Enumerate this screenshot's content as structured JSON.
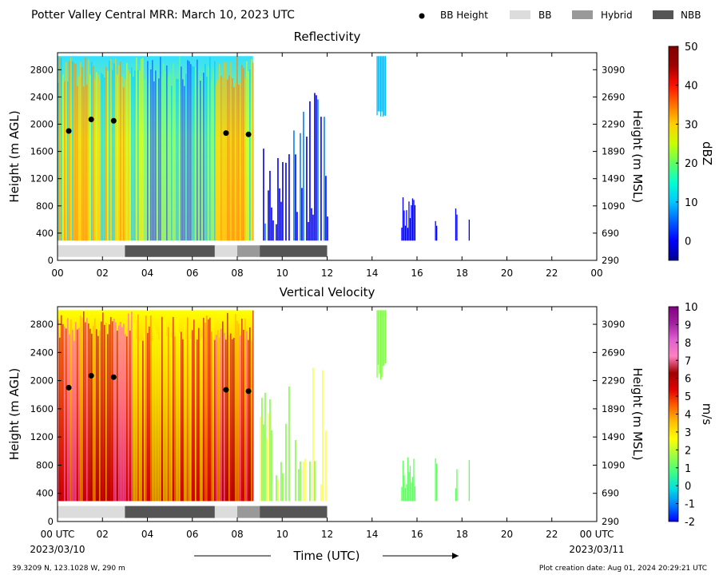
{
  "header": {
    "title": "Potter Valley Central MRR:  March 10, 2023 UTC"
  },
  "legend": {
    "placement": "top-right",
    "items": [
      {
        "label": "BB Height",
        "kind": "dot",
        "color": "#000000"
      },
      {
        "label": "BB",
        "kind": "swatch",
        "color": "#dcdcdc"
      },
      {
        "label": "Hybrid",
        "kind": "swatch",
        "color": "#999999"
      },
      {
        "label": "NBB",
        "kind": "swatch",
        "color": "#555555"
      }
    ]
  },
  "footer": {
    "location": "39.3209 N, 123.1028 W, 290 m",
    "creation": "Plot creation date: Aug 01, 2024 20:29:21 UTC",
    "xlabel": "Time (UTC)",
    "start_date": "2023/03/10",
    "end_date": "2023/03/11"
  },
  "chart_data": [
    {
      "type": "heatmap",
      "title": "Reflectivity",
      "ylabel": "Height (m AGL)",
      "y2label": "Height (m MSL)",
      "colorbar_label": "dBZ",
      "xlim": [
        0,
        24
      ],
      "ylim": [
        0,
        3050
      ],
      "x_ticks": [
        "00",
        "02",
        "04",
        "06",
        "08",
        "10",
        "12",
        "14",
        "16",
        "18",
        "20",
        "22",
        "00"
      ],
      "y_ticks": [
        0,
        400,
        800,
        1200,
        1600,
        2000,
        2400,
        2800
      ],
      "y2_ticks": [
        290,
        690,
        1090,
        1490,
        1890,
        2290,
        2690,
        3090
      ],
      "colorbar": {
        "min": -5,
        "max": 50,
        "ticks": [
          0,
          10,
          20,
          30,
          40,
          50
        ],
        "colors": [
          "#00008f",
          "#0000ff",
          "#0060ff",
          "#00c8ff",
          "#00ffd0",
          "#60ff60",
          "#c8ff00",
          "#ffd000",
          "#ff7000",
          "#ff1000",
          "#a00000",
          "#800000"
        ]
      },
      "bb_height_points": [
        {
          "x": 0.5,
          "y": 1900
        },
        {
          "x": 1.5,
          "y": 2070
        },
        {
          "x": 2.5,
          "y": 2050
        },
        {
          "x": 7.5,
          "y": 1870
        },
        {
          "x": 8.5,
          "y": 1850
        }
      ],
      "bb_type_bar": [
        {
          "start": 0,
          "end": 3,
          "type": "BB"
        },
        {
          "start": 3,
          "end": 7,
          "type": "NBB"
        },
        {
          "start": 7,
          "end": 8,
          "type": "BB"
        },
        {
          "start": 8,
          "end": 9,
          "type": "Hybrid"
        },
        {
          "start": 9,
          "end": 12,
          "type": "NBB"
        }
      ]
    },
    {
      "type": "heatmap",
      "title": "Vertical Velocity",
      "ylabel": "Height (m AGL)",
      "y2label": "Height (m MSL)",
      "colorbar_label": "m/s",
      "xlim": [
        0,
        24
      ],
      "ylim": [
        0,
        3050
      ],
      "x_ticks": [
        "00 UTC",
        "02",
        "04",
        "06",
        "08",
        "10",
        "12",
        "14",
        "16",
        "18",
        "20",
        "22",
        "00 UTC"
      ],
      "y_ticks": [
        0,
        400,
        800,
        1200,
        1600,
        2000,
        2400,
        2800
      ],
      "y2_ticks": [
        290,
        690,
        1090,
        1490,
        1890,
        2290,
        2690,
        3090
      ],
      "colorbar": {
        "min": -2,
        "max": 10,
        "ticks": [
          -2,
          -1,
          0,
          1,
          2,
          3,
          4,
          5,
          6,
          7,
          8,
          9,
          10
        ],
        "colors": [
          "#0000ff",
          "#0080ff",
          "#00e0e0",
          "#40ff80",
          "#a0ff40",
          "#ffff00",
          "#ffc000",
          "#ff6000",
          "#e00000",
          "#a00000",
          "#ff80c0",
          "#e060d0",
          "#a020a0",
          "#800080"
        ]
      },
      "bb_height_points": [
        {
          "x": 0.5,
          "y": 1900
        },
        {
          "x": 1.5,
          "y": 2070
        },
        {
          "x": 2.5,
          "y": 2050
        },
        {
          "x": 7.5,
          "y": 1870
        },
        {
          "x": 8.5,
          "y": 1850
        }
      ],
      "bb_type_bar": [
        {
          "start": 0,
          "end": 3,
          "type": "BB"
        },
        {
          "start": 3,
          "end": 7,
          "type": "NBB"
        },
        {
          "start": 7,
          "end": 8,
          "type": "BB"
        },
        {
          "start": 8,
          "end": 9,
          "type": "Hybrid"
        },
        {
          "start": 9,
          "end": 12,
          "type": "NBB"
        }
      ]
    }
  ]
}
